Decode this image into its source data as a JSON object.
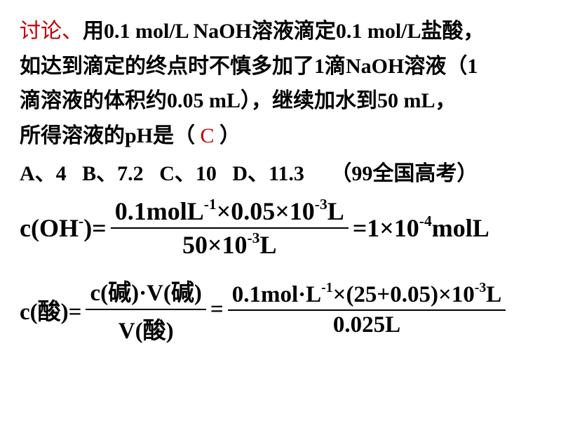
{
  "text_color": "#000000",
  "highlight_color": "#c00000",
  "background_color": "#ffffff",
  "font_main": "SimSun",
  "font_formula": "Times New Roman",
  "question": {
    "label": "讨论、",
    "line1": "用0.1 mol/L NaOH溶液滴定0.1 mol/L盐酸，",
    "line2": "如达到滴定的终点时不慎多加了1滴NaOH溶液（1",
    "line3": "滴溶液的体积约0.05 mL），继续加水到50 mL，",
    "line4a": "所得溶液的pH是（",
    "answer": " C ",
    "line4b": "）"
  },
  "options": {
    "A": "A、4",
    "B": "B、7.2",
    "C": "C、10",
    "D": "D、11.3",
    "source": "（99全国高考）"
  },
  "formula1": {
    "left_label": "c(OH",
    "left_close": ")=",
    "numerator_a": "0.1molL",
    "numerator_exp1": "-1",
    "numerator_b": "×0.05×10",
    "numerator_exp2": "-3",
    "numerator_c": "L",
    "denominator_a": "50×10",
    "denominator_exp": "-3",
    "denominator_b": "L",
    "result_a": "=1×10",
    "result_exp": "-4",
    "result_b": "molL"
  },
  "formula2": {
    "left": "c(",
    "acid": "酸",
    "eq": ")=",
    "frac1_num_a": "c(",
    "base": "碱",
    "frac1_num_b": ")·V(",
    "frac1_num_c": ")",
    "frac1_den_a": "V(",
    "frac1_den_b": ")",
    "mid_eq": "=",
    "frac2_num_a": "0.1mol·L",
    "frac2_num_exp1": "-1",
    "frac2_num_b": "×(25+0.05)×10",
    "frac2_num_exp2": "-3",
    "frac2_num_c": "L",
    "frac2_den": "0.025L"
  }
}
